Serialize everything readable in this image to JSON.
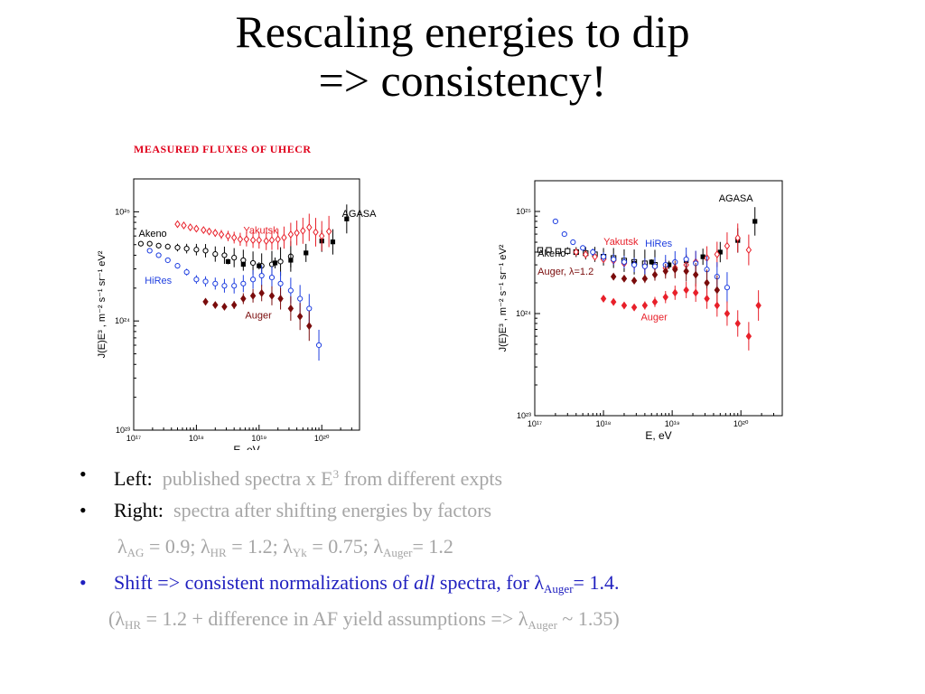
{
  "slide": {
    "title_line1": "Rescaling energies to dip",
    "title_line2": "=> consistency!",
    "left_caption": "MEASURED  FLUXES  OF  UHECR"
  },
  "chart_data": [
    {
      "type": "scatter",
      "title": "",
      "xlabel": "E, eV",
      "ylabel": "J(E)E³ , m⁻² s⁻¹ sr⁻¹ eV²",
      "xscale": "log",
      "yscale": "log",
      "xlim": [
        1e+17,
        4e+20
      ],
      "ylim": [
        1e+23,
        2e+25
      ],
      "xticks": [
        "10¹⁷",
        "10¹⁸",
        "10¹⁹",
        "10²⁰"
      ],
      "yticks": [
        "10²³",
        "10²⁴",
        "10²⁵"
      ],
      "series": [
        {
          "name": "Akeno",
          "color": "#000000",
          "marker": "open-circle",
          "x": [
            1.3e+17,
            1.8e+17,
            2.5e+17,
            3.5e+17,
            5e+17,
            7e+17,
            1e+18,
            1.4e+18,
            2e+18,
            2.8e+18,
            4e+18,
            5.6e+18,
            8e+18,
            1.1e+19,
            1.6e+19,
            2.2e+19,
            3.2e+19
          ],
          "y": [
            5.1e+24,
            5.1e+24,
            4.9e+24,
            4.8e+24,
            4.7e+24,
            4.6e+24,
            4.5e+24,
            4.4e+24,
            4.1e+24,
            4e+24,
            3.8e+24,
            3.6e+24,
            3.4e+24,
            3.2e+24,
            3.3e+24,
            3.5e+24,
            3.9e+24
          ]
        },
        {
          "name": "AGASA",
          "color": "#000000",
          "marker": "filled-square",
          "x": [
            3.2e+18,
            5.6e+18,
            1e+19,
            1.8e+19,
            3.2e+19,
            5.6e+19,
            1e+20,
            1.5e+20,
            2.5e+20
          ],
          "y": [
            3.5e+24,
            3.3e+24,
            3.2e+24,
            3.4e+24,
            3.6e+24,
            4.2e+24,
            5.4e+24,
            5.3e+24,
            8.6e+24
          ]
        },
        {
          "name": "Yakutsk",
          "color": "#e8202a",
          "marker": "open-diamond",
          "x": [
            5e+17,
            6.3e+17,
            8e+17,
            1e+18,
            1.3e+18,
            1.6e+18,
            2e+18,
            2.5e+18,
            3.2e+18,
            4e+18,
            5e+18,
            6.3e+18,
            8e+18,
            1e+19,
            1.3e+19,
            1.6e+19,
            2e+19,
            2.5e+19,
            3.2e+19,
            4e+19,
            5e+19,
            6.3e+19,
            8e+19,
            1e+20,
            1.3e+20
          ],
          "y": [
            7.7e+24,
            7.5e+24,
            7.2e+24,
            7e+24,
            6.8e+24,
            6.6e+24,
            6.4e+24,
            6.2e+24,
            6e+24,
            5.8e+24,
            5.6e+24,
            5.6e+24,
            5.5e+24,
            5.5e+24,
            5.4e+24,
            5.5e+24,
            5.6e+24,
            5.8e+24,
            6.2e+24,
            6.4e+24,
            6.7e+24,
            7.2e+24,
            6.5e+24,
            6e+24,
            6.6e+24
          ]
        },
        {
          "name": "HiRes",
          "color": "#1f3fe0",
          "marker": "open-circle",
          "x": [
            1.8e+17,
            2.5e+17,
            3.5e+17,
            5e+17,
            7e+17,
            1e+18,
            1.4e+18,
            2e+18,
            2.8e+18,
            4e+18,
            5.6e+18,
            8e+18,
            1.1e+19,
            1.6e+19,
            2.2e+19,
            3.2e+19,
            4.5e+19,
            6.3e+19,
            9e+19
          ],
          "y": [
            4.4e+24,
            4e+24,
            3.6e+24,
            3.2e+24,
            2.8e+24,
            2.4e+24,
            2.3e+24,
            2.2e+24,
            2.1e+24,
            2.1e+24,
            2.2e+24,
            2.4e+24,
            2.6e+24,
            2.5e+24,
            2.2e+24,
            1.9e+24,
            1.6e+24,
            1.3e+24,
            6e+23
          ]
        },
        {
          "name": "Auger",
          "color": "#7a0c0c",
          "marker": "filled-diamond",
          "x": [
            1.4e+18,
            2e+18,
            2.8e+18,
            4e+18,
            5.6e+18,
            8e+18,
            1.1e+19,
            1.6e+19,
            2.2e+19,
            3.2e+19,
            4.5e+19,
            6.3e+19
          ],
          "y": [
            1.5e+24,
            1.4e+24,
            1.35e+24,
            1.4e+24,
            1.6e+24,
            1.7e+24,
            1.8e+24,
            1.7e+24,
            1.6e+24,
            1.3e+24,
            1.1e+24,
            9e+23
          ]
        }
      ],
      "labels": [
        "AGASA",
        "Yakutsk",
        "Akeno",
        "HiRes",
        "Auger"
      ]
    },
    {
      "type": "scatter",
      "title": "",
      "xlabel": "E, eV",
      "ylabel": "J(E)E³ , m⁻² s⁻¹ sr⁻¹ eV²",
      "xscale": "log",
      "yscale": "log",
      "xlim": [
        1e+17,
        4e+20
      ],
      "ylim": [
        1e+23,
        2e+25
      ],
      "xticks": [
        "10¹⁷",
        "10¹⁸",
        "10¹⁹",
        "10²⁰"
      ],
      "yticks": [
        "10²³",
        "10²⁴",
        "10²⁵"
      ],
      "series": [
        {
          "name": "Akeno",
          "color": "#000000",
          "marker": "open-square",
          "x": [
            1.2e+17,
            1.6e+17,
            2.2e+17,
            3e+17,
            4e+17,
            5.5e+17,
            7.5e+17,
            1e+18,
            1.4e+18,
            2e+18,
            2.8e+18,
            4e+18,
            5.6e+18
          ],
          "y": [
            4.2e+24,
            4.2e+24,
            4.1e+24,
            4.1e+24,
            4e+24,
            3.9e+24,
            3.8e+24,
            3.6e+24,
            3.5e+24,
            3.3e+24,
            3.2e+24,
            3.1e+24,
            3e+24
          ]
        },
        {
          "name": "AGASA",
          "color": "#000000",
          "marker": "filled-square",
          "x": [
            2.8e+18,
            5e+18,
            9e+18,
            1.6e+19,
            2.8e+19,
            5e+19,
            9e+19,
            1.6e+20
          ],
          "y": [
            3.1e+24,
            3.2e+24,
            3e+24,
            3.3e+24,
            3.6e+24,
            4e+24,
            5.2e+24,
            8e+24
          ]
        },
        {
          "name": "Yakutsk",
          "color": "#e8202a",
          "marker": "open-diamond",
          "x": [
            4e+17,
            5.5e+17,
            7.5e+17,
            1e+18,
            1.4e+18,
            2e+18,
            2.8e+18,
            4e+18,
            5.6e+18,
            8e+18,
            1.1e+19,
            1.6e+19,
            2.2e+19,
            3.2e+19,
            4.5e+19,
            6.3e+19,
            9e+19,
            1.3e+20
          ],
          "y": [
            4e+24,
            3.8e+24,
            3.6e+24,
            3.4e+24,
            3.3e+24,
            3.1e+24,
            3e+24,
            2.9e+24,
            2.9e+24,
            2.8e+24,
            2.8e+24,
            3e+24,
            3.2e+24,
            3.5e+24,
            3.8e+24,
            4.6e+24,
            5.5e+24,
            4.2e+24
          ]
        },
        {
          "name": "HiRes",
          "color": "#1f3fe0",
          "marker": "open-circle",
          "x": [
            2e+17,
            2.7e+17,
            3.6e+17,
            5e+17,
            7e+17,
            1e+18,
            1.4e+18,
            2e+18,
            2.8e+18,
            4e+18,
            5.6e+18,
            8e+18,
            1.1e+19,
            1.6e+19,
            2.2e+19,
            3.2e+19,
            4.5e+19,
            6.3e+19
          ],
          "y": [
            8e+24,
            6e+24,
            5e+24,
            4.4e+24,
            4e+24,
            3.6e+24,
            3.4e+24,
            3.2e+24,
            3e+24,
            2.9e+24,
            2.9e+24,
            3e+24,
            3.2e+24,
            3.4e+24,
            3.1e+24,
            2.7e+24,
            2.3e+24,
            1.8e+24
          ]
        },
        {
          "name": "Auger, λ=1.2",
          "color": "#7a0c0c",
          "marker": "filled-diamond",
          "x": [
            1.4e+18,
            2e+18,
            2.8e+18,
            4e+18,
            5.6e+18,
            8e+18,
            1.1e+19,
            1.6e+19,
            2.2e+19,
            3.2e+19,
            4.5e+19
          ],
          "y": [
            2.3e+24,
            2.2e+24,
            2.1e+24,
            2.2e+24,
            2.4e+24,
            2.6e+24,
            2.7e+24,
            2.6e+24,
            2.4e+24,
            2e+24,
            1.7e+24
          ]
        },
        {
          "name": "Auger",
          "color": "#e8202a",
          "marker": "filled-diamond",
          "x": [
            1e+18,
            1.4e+18,
            2e+18,
            2.8e+18,
            4e+18,
            5.6e+18,
            8e+18,
            1.1e+19,
            1.6e+19,
            2.2e+19,
            3.2e+19,
            4.5e+19,
            6.3e+19,
            9e+19,
            1.3e+20,
            1.8e+20
          ],
          "y": [
            1.4e+24,
            1.3e+24,
            1.2e+24,
            1.15e+24,
            1.2e+24,
            1.3e+24,
            1.45e+24,
            1.6e+24,
            1.7e+24,
            1.6e+24,
            1.4e+24,
            1.2e+24,
            1e+24,
            8e+23,
            6e+23,
            1.2e+24
          ]
        }
      ],
      "labels": [
        "AGASA",
        "Yakutsk",
        "HiRes",
        "Akeno",
        "Auger, λ=1.2",
        "Auger"
      ]
    }
  ],
  "bullets": [
    {
      "bullet": "•",
      "label": "Left:",
      "text": "published spectra x E",
      "sup": "3",
      "tail": " from different expts"
    },
    {
      "bullet": "•",
      "label": "Right:",
      "text": "spectra after shifting energies by factors"
    },
    {
      "lambda_line": "λ",
      "ag_sub": "AG",
      "ag_val": " = 0.9; ",
      "hr_sub": "HR",
      "hr_val": " = 1.2; ",
      "yk_sub": "Yk",
      "yk_val": " = 0.75; ",
      "auger_sub": "Auger",
      "auger_val": "= 1.2"
    },
    {
      "bullet": "•",
      "text1": "Shift => consistent normalizations of ",
      "italic": "all",
      "text2": " spectra, for  ",
      "auger_sub": "Auger",
      "auger_val": "= 1.4."
    },
    {
      "open": "(",
      "hr_sub": "HR",
      "mid": " = 1.2 + difference in AF yield assumptions => ",
      "auger_sub": "Auger",
      "close": " ~ 1.35)"
    }
  ]
}
